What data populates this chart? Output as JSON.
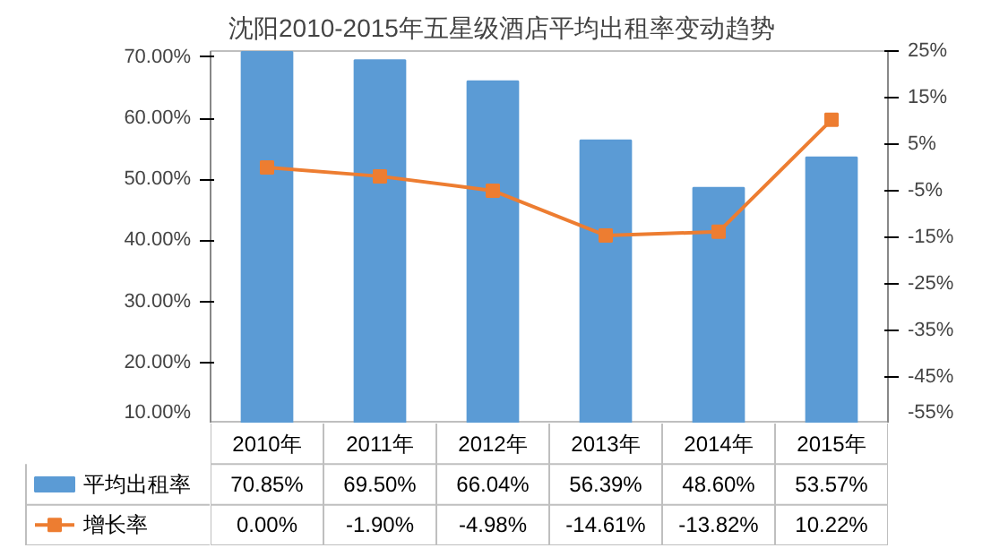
{
  "chart_data": {
    "type": "bar",
    "title": "沈阳2010-2015年五星级酒店平均出租率变动趋势",
    "categories": [
      "2010年",
      "2011年",
      "2012年",
      "2013年",
      "2014年",
      "2015年"
    ],
    "series": [
      {
        "name": "平均出租率",
        "color": "#5b9bd5",
        "values": [
          70.85,
          69.5,
          66.04,
          56.39,
          48.6,
          53.57
        ],
        "value_labels": [
          "70.85%",
          "69.50%",
          "66.04%",
          "56.39%",
          "48.60%",
          "53.57%"
        ]
      },
      {
        "name": "增长率",
        "type": "line",
        "axis": "y2",
        "color": "#ed7d31",
        "values": [
          0.0,
          -1.9,
          -4.98,
          -14.61,
          -13.82,
          10.22
        ],
        "value_labels": [
          "0.00%",
          "-1.90%",
          "-4.98%",
          "-14.61%",
          "-13.82%",
          "10.22%"
        ]
      }
    ],
    "ylim": [
      10,
      71
    ],
    "yticks": [
      {
        "value": 10,
        "label": "10.00%"
      },
      {
        "value": 20,
        "label": "20.00%"
      },
      {
        "value": 30,
        "label": "30.00%"
      },
      {
        "value": 40,
        "label": "40.00%"
      },
      {
        "value": 50,
        "label": "50.00%"
      },
      {
        "value": 60,
        "label": "60.00%"
      },
      {
        "value": 70,
        "label": "70.00%"
      }
    ],
    "y2lim": [
      -55,
      25
    ],
    "y2ticks": [
      {
        "value": -55,
        "label": "-55%"
      },
      {
        "value": -45,
        "label": "-45%"
      },
      {
        "value": -35,
        "label": "-35%"
      },
      {
        "value": -25,
        "label": "-25%"
      },
      {
        "value": -15,
        "label": "-15%"
      },
      {
        "value": -5,
        "label": "-5%"
      },
      {
        "value": 5,
        "label": "5%"
      },
      {
        "value": 15,
        "label": "15%"
      },
      {
        "value": 25,
        "label": "25%"
      }
    ],
    "grid": false,
    "legend": "bottom",
    "marker": "square",
    "line_style": "solid"
  }
}
